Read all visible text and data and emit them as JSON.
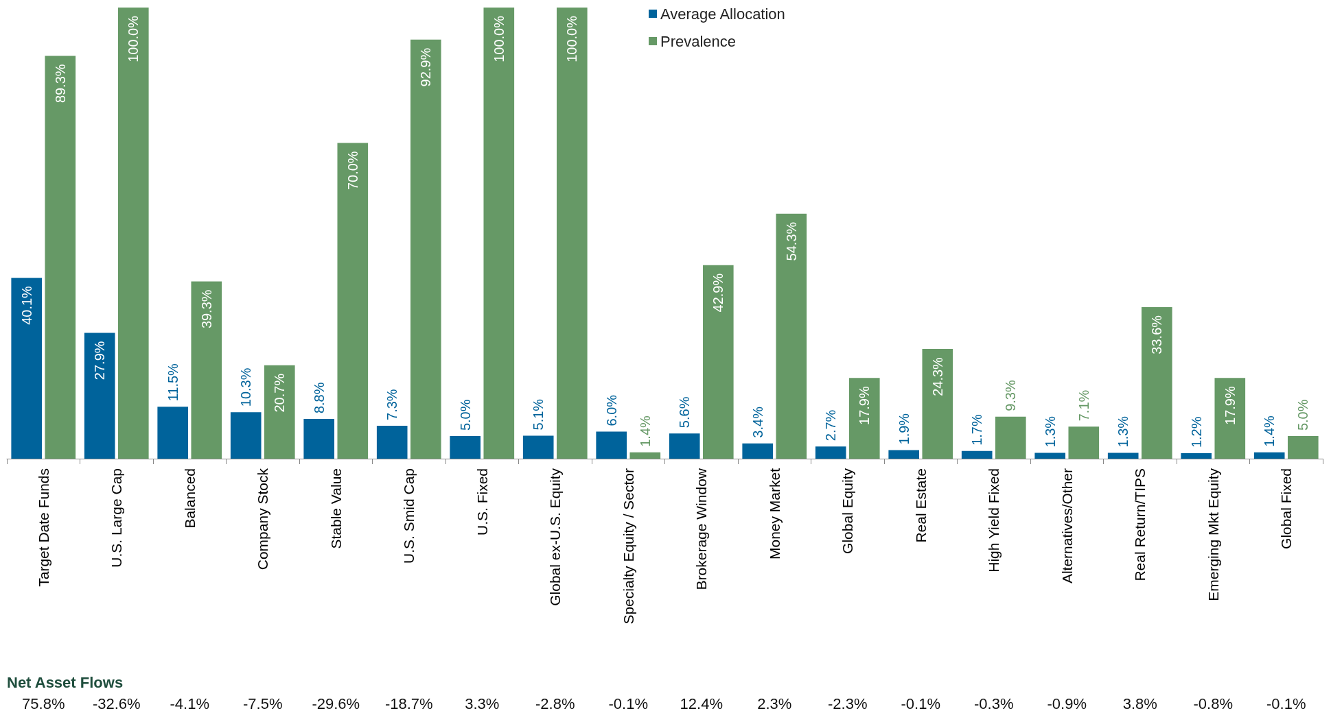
{
  "chart_data": {
    "type": "bar",
    "categories": [
      "Target Date Funds",
      "U.S. Large Cap",
      "Balanced",
      "Company Stock",
      "Stable Value",
      "U.S. Smid Cap",
      "U.S. Fixed",
      "Global ex-U.S. Equity",
      "Specialty Equity / Sector",
      "Brokerage Window",
      "Money Market",
      "Global Equity",
      "Real Estate",
      "High Yield Fixed",
      "Alternatives/Other",
      "Real Return/TIPS",
      "Emerging Mkt Equity",
      "Global Fixed"
    ],
    "series": [
      {
        "name": "Average Allocation",
        "color": "#00639b",
        "values": [
          40.1,
          27.9,
          11.5,
          10.3,
          8.8,
          7.3,
          5.0,
          5.1,
          6.0,
          5.6,
          3.4,
          2.7,
          1.9,
          1.7,
          1.3,
          1.3,
          1.2,
          1.4
        ],
        "value_labels": [
          "40.1%",
          "27.9%",
          "11.5%",
          "10.3%",
          "8.8%",
          "7.3%",
          "5.0%",
          "5.1%",
          "6.0%",
          "5.6%",
          "3.4%",
          "2.7%",
          "1.9%",
          "1.7%",
          "1.3%",
          "1.3%",
          "1.2%",
          "1.4%"
        ]
      },
      {
        "name": "Prevalence",
        "color": "#669966",
        "values": [
          89.3,
          100.0,
          39.3,
          20.7,
          70.0,
          92.9,
          100.0,
          100.0,
          1.4,
          42.9,
          54.3,
          17.9,
          24.3,
          9.3,
          7.1,
          33.6,
          17.9,
          5.0
        ],
        "value_labels": [
          "89.3%",
          "100.0%",
          "39.3%",
          "20.7%",
          "70.0%",
          "92.9%",
          "100.0%",
          "100.0%",
          "1.4%",
          "42.9%",
          "54.3%",
          "17.9%",
          "24.3%",
          "9.3%",
          "7.1%",
          "33.6%",
          "17.9%",
          "5.0%"
        ]
      }
    ],
    "legend": "top",
    "grid": false,
    "annotations": [
      "Net Asset Flows",
      "75.8%",
      "-32.6%",
      "-4.1%",
      "-7.5%",
      "-29.6%",
      "-18.7%",
      "3.3%",
      "-2.8%",
      "-0.1%",
      "12.4%",
      "2.3%",
      "-2.3%",
      "-0.1%",
      "-0.3%",
      "-0.9%",
      "3.8%",
      "-0.8%",
      "-0.1%"
    ]
  }
}
